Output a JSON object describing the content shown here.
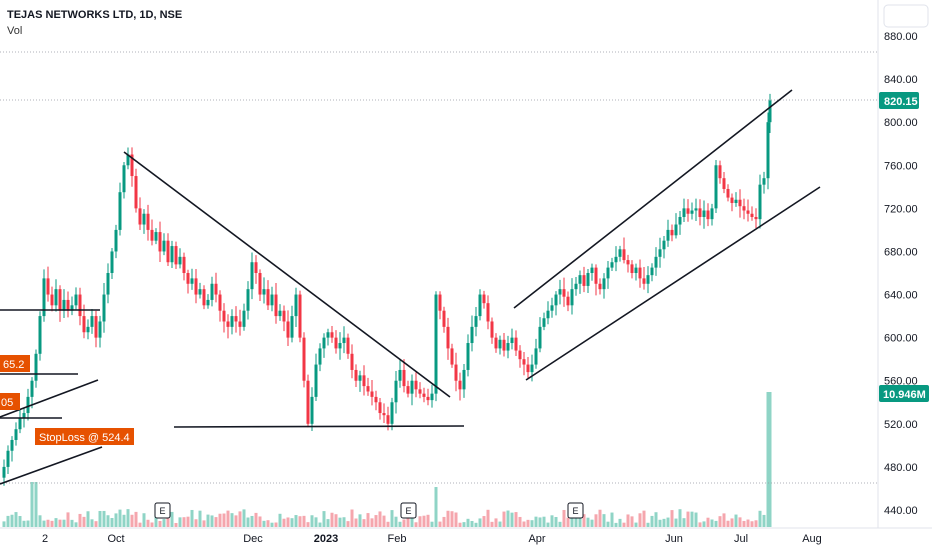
{
  "header": {
    "title": "TEJAS NETWORKS LTD, 1D, NSE",
    "vol_label": "Vol"
  },
  "price_tag": {
    "value": "820.15",
    "color": "#089981"
  },
  "volume_tag": {
    "value": "10.946M",
    "color": "#089981"
  },
  "annotations": [
    {
      "text": "65.2",
      "color": "#e65100"
    },
    {
      "text": "05",
      "color": "#e65100"
    },
    {
      "text": "StopLoss @ 524.4",
      "color": "#e65100"
    }
  ],
  "earnings_marker": "E",
  "colors": {
    "up": "#089981",
    "down": "#f23645",
    "up_vol": "#8fd4c6",
    "down_vol": "#f5a6ad"
  },
  "chart_data": {
    "type": "candlestick",
    "title": "TEJAS NETWORKS LTD, 1D, NSE",
    "y_axis": {
      "ticks": [
        "880.00",
        "840.00",
        "800.00",
        "760.00",
        "720.00",
        "680.00",
        "640.00",
        "600.00",
        "560.00",
        "520.00",
        "480.00",
        "440.00"
      ],
      "range": [
        428,
        895
      ]
    },
    "x_axis": {
      "ticks": [
        {
          "label": "2",
          "bold": false
        },
        {
          "label": "Oct",
          "bold": false
        },
        {
          "label": "Dec",
          "bold": false
        },
        {
          "label": "2023",
          "bold": true
        },
        {
          "label": "Feb",
          "bold": false
        },
        {
          "label": "Apr",
          "bold": false
        },
        {
          "label": "Jun",
          "bold": false
        },
        {
          "label": "Jul",
          "bold": false
        },
        {
          "label": "Aug",
          "bold": false
        }
      ]
    },
    "last_price": 820.15,
    "last_volume": "10.946M",
    "price_path": [
      [
        0,
        470
      ],
      [
        4,
        480
      ],
      [
        8,
        495
      ],
      [
        12,
        505
      ],
      [
        16,
        515
      ],
      [
        20,
        525
      ],
      [
        24,
        530
      ],
      [
        28,
        545
      ],
      [
        32,
        560
      ],
      [
        36,
        585
      ],
      [
        40,
        620
      ],
      [
        44,
        655
      ],
      [
        48,
        640
      ],
      [
        52,
        630
      ],
      [
        56,
        645
      ],
      [
        60,
        625
      ],
      [
        64,
        635
      ],
      [
        68,
        625
      ],
      [
        72,
        630
      ],
      [
        76,
        640
      ],
      [
        80,
        620
      ],
      [
        84,
        605
      ],
      [
        88,
        610
      ],
      [
        92,
        620
      ],
      [
        96,
        600
      ],
      [
        100,
        615
      ],
      [
        104,
        640
      ],
      [
        108,
        660
      ],
      [
        112,
        680
      ],
      [
        116,
        700
      ],
      [
        120,
        735
      ],
      [
        124,
        760
      ],
      [
        128,
        770
      ],
      [
        132,
        750
      ],
      [
        136,
        720
      ],
      [
        140,
        705
      ],
      [
        144,
        715
      ],
      [
        148,
        700
      ],
      [
        152,
        690
      ],
      [
        156,
        698
      ],
      [
        160,
        680
      ],
      [
        164,
        690
      ],
      [
        168,
        670
      ],
      [
        172,
        685
      ],
      [
        176,
        668
      ],
      [
        180,
        675
      ],
      [
        184,
        660
      ],
      [
        188,
        650
      ],
      [
        192,
        655
      ],
      [
        196,
        640
      ],
      [
        200,
        645
      ],
      [
        204,
        630
      ],
      [
        208,
        635
      ],
      [
        212,
        650
      ],
      [
        216,
        640
      ],
      [
        220,
        625
      ],
      [
        224,
        615
      ],
      [
        228,
        610
      ],
      [
        232,
        620
      ],
      [
        236,
        615
      ],
      [
        240,
        610
      ],
      [
        244,
        625
      ],
      [
        248,
        645
      ],
      [
        252,
        670
      ],
      [
        256,
        660
      ],
      [
        260,
        640
      ],
      [
        264,
        645
      ],
      [
        268,
        630
      ],
      [
        272,
        640
      ],
      [
        276,
        620
      ],
      [
        280,
        625
      ],
      [
        284,
        615
      ],
      [
        288,
        600
      ],
      [
        292,
        620
      ],
      [
        296,
        640
      ],
      [
        300,
        600
      ],
      [
        304,
        560
      ],
      [
        308,
        520
      ],
      [
        312,
        545
      ],
      [
        316,
        575
      ],
      [
        320,
        590
      ],
      [
        324,
        600
      ],
      [
        328,
        605
      ],
      [
        332,
        600
      ],
      [
        336,
        590
      ],
      [
        340,
        595
      ],
      [
        344,
        600
      ],
      [
        348,
        585
      ],
      [
        352,
        570
      ],
      [
        356,
        560
      ],
      [
        360,
        565
      ],
      [
        364,
        555
      ],
      [
        368,
        550
      ],
      [
        372,
        545
      ],
      [
        376,
        540
      ],
      [
        380,
        530
      ],
      [
        384,
        528
      ],
      [
        388,
        520
      ],
      [
        392,
        540
      ],
      [
        396,
        560
      ],
      [
        400,
        570
      ],
      [
        404,
        555
      ],
      [
        408,
        548
      ],
      [
        412,
        560
      ],
      [
        416,
        552
      ],
      [
        420,
        548
      ],
      [
        424,
        545
      ],
      [
        428,
        542
      ],
      [
        432,
        548
      ],
      [
        436,
        640
      ],
      [
        440,
        625
      ],
      [
        444,
        610
      ],
      [
        448,
        590
      ],
      [
        452,
        575
      ],
      [
        456,
        560
      ],
      [
        460,
        552
      ],
      [
        464,
        570
      ],
      [
        468,
        595
      ],
      [
        472,
        610
      ],
      [
        476,
        620
      ],
      [
        480,
        640
      ],
      [
        484,
        632
      ],
      [
        488,
        615
      ],
      [
        492,
        600
      ],
      [
        496,
        590
      ],
      [
        500,
        598
      ],
      [
        504,
        588
      ],
      [
        508,
        595
      ],
      [
        512,
        600
      ],
      [
        516,
        588
      ],
      [
        520,
        580
      ],
      [
        524,
        575
      ],
      [
        528,
        568
      ],
      [
        532,
        575
      ],
      [
        536,
        590
      ],
      [
        540,
        610
      ],
      [
        544,
        618
      ],
      [
        548,
        625
      ],
      [
        552,
        630
      ],
      [
        556,
        640
      ],
      [
        560,
        645
      ],
      [
        564,
        638
      ],
      [
        568,
        630
      ],
      [
        572,
        645
      ],
      [
        576,
        650
      ],
      [
        580,
        658
      ],
      [
        584,
        648
      ],
      [
        588,
        660
      ],
      [
        592,
        665
      ],
      [
        596,
        650
      ],
      [
        600,
        645
      ],
      [
        604,
        655
      ],
      [
        608,
        665
      ],
      [
        612,
        670
      ],
      [
        616,
        675
      ],
      [
        620,
        682
      ],
      [
        624,
        672
      ],
      [
        628,
        668
      ],
      [
        632,
        660
      ],
      [
        636,
        665
      ],
      [
        640,
        655
      ],
      [
        644,
        650
      ],
      [
        648,
        658
      ],
      [
        652,
        665
      ],
      [
        656,
        675
      ],
      [
        660,
        682
      ],
      [
        664,
        690
      ],
      [
        668,
        700
      ],
      [
        672,
        695
      ],
      [
        676,
        705
      ],
      [
        680,
        712
      ],
      [
        684,
        720
      ],
      [
        688,
        715
      ],
      [
        692,
        718
      ],
      [
        696,
        720
      ],
      [
        700,
        712
      ],
      [
        704,
        718
      ],
      [
        708,
        710
      ],
      [
        712,
        720
      ],
      [
        716,
        760
      ],
      [
        720,
        748
      ],
      [
        724,
        738
      ],
      [
        728,
        730
      ],
      [
        732,
        725
      ],
      [
        736,
        728
      ],
      [
        740,
        722
      ],
      [
        744,
        718
      ],
      [
        748,
        715
      ],
      [
        752,
        712
      ],
      [
        756,
        710
      ],
      [
        760,
        742
      ],
      [
        764,
        748
      ],
      [
        768,
        800
      ],
      [
        770,
        820.15
      ]
    ]
  }
}
